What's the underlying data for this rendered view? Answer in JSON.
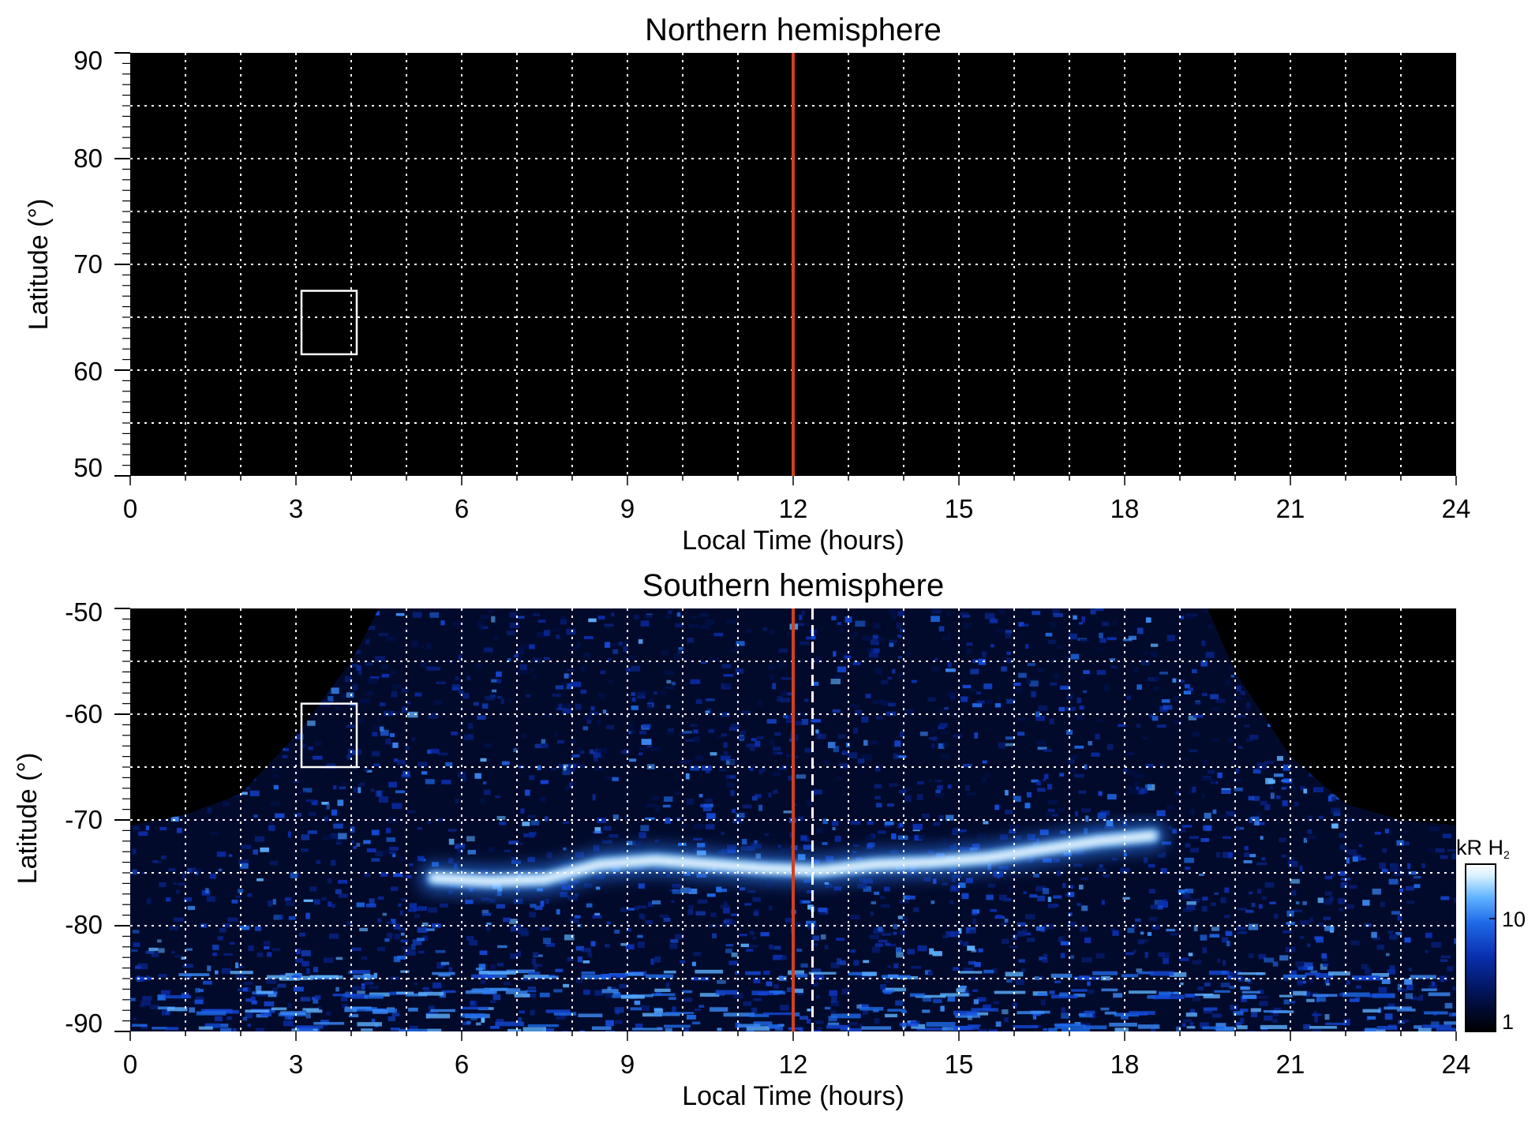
{
  "chart_data": [
    {
      "type": "heatmap",
      "title": "Northern hemisphere",
      "xlabel": "Local Time (hours)",
      "ylabel": "Latitude (°)",
      "xlim": [
        0,
        24
      ],
      "ylim": [
        50,
        90
      ],
      "x_ticks": [
        "0",
        "3",
        "6",
        "9",
        "12",
        "15",
        "18",
        "21",
        "24"
      ],
      "y_ticks": [
        "50",
        "60",
        "70",
        "80",
        "90"
      ],
      "grid": true,
      "reference_line": {
        "x": 12,
        "color": "#d2401e"
      },
      "box": {
        "x0": 3.1,
        "x1": 4.1,
        "y0": 61.5,
        "y1": 67.5
      },
      "emission": "none"
    },
    {
      "type": "heatmap",
      "title": "Southern hemisphere",
      "xlabel": "Local Time (hours)",
      "ylabel": "Latitude (°)",
      "xlim": [
        0,
        24
      ],
      "ylim": [
        -90,
        -50
      ],
      "x_ticks": [
        "0",
        "3",
        "6",
        "9",
        "12",
        "15",
        "18",
        "21",
        "24"
      ],
      "y_ticks": [
        "-50",
        "-60",
        "-70",
        "-80",
        "-90"
      ],
      "grid": true,
      "reference_line": {
        "x": 12,
        "color": "#d2401e"
      },
      "dashed_line": {
        "x": 12.35,
        "color": "#ffffff"
      },
      "box": {
        "x0": 3.1,
        "x1": 4.1,
        "y0": -65.0,
        "y1": -59.0
      },
      "auroral_oval": {
        "x": [
          5.5,
          6.5,
          7.5,
          8.5,
          9.5,
          10.5,
          11.5,
          12.5,
          13.5,
          14.5,
          15.5,
          16.5,
          17.5,
          18.5
        ],
        "lat": [
          -75.5,
          -75.8,
          -75.6,
          -74.2,
          -73.8,
          -74.2,
          -74.6,
          -74.8,
          -74.2,
          -74.0,
          -73.6,
          -72.8,
          -72.0,
          -71.5
        ]
      },
      "coverage_edge": {
        "x": [
          0,
          1,
          2,
          3,
          4,
          4.5,
          19.5,
          20,
          21,
          22,
          23,
          24
        ],
        "lat": [
          -70.5,
          -69.5,
          -67.5,
          -62.0,
          -55.0,
          -50.0,
          -50.0,
          -56.0,
          -64.0,
          -68.5,
          -70.0,
          -70.5
        ]
      },
      "colorbar": {
        "label": "kR H",
        "label_sub": "2",
        "scale": "log",
        "range": [
          1,
          30
        ],
        "tick_labels": [
          "1",
          "10"
        ],
        "colors": [
          "#000000",
          "#00104a",
          "#0a2fb0",
          "#1e6ae8",
          "#5eb2ff",
          "#d8f0ff",
          "#ffffff"
        ]
      }
    }
  ]
}
